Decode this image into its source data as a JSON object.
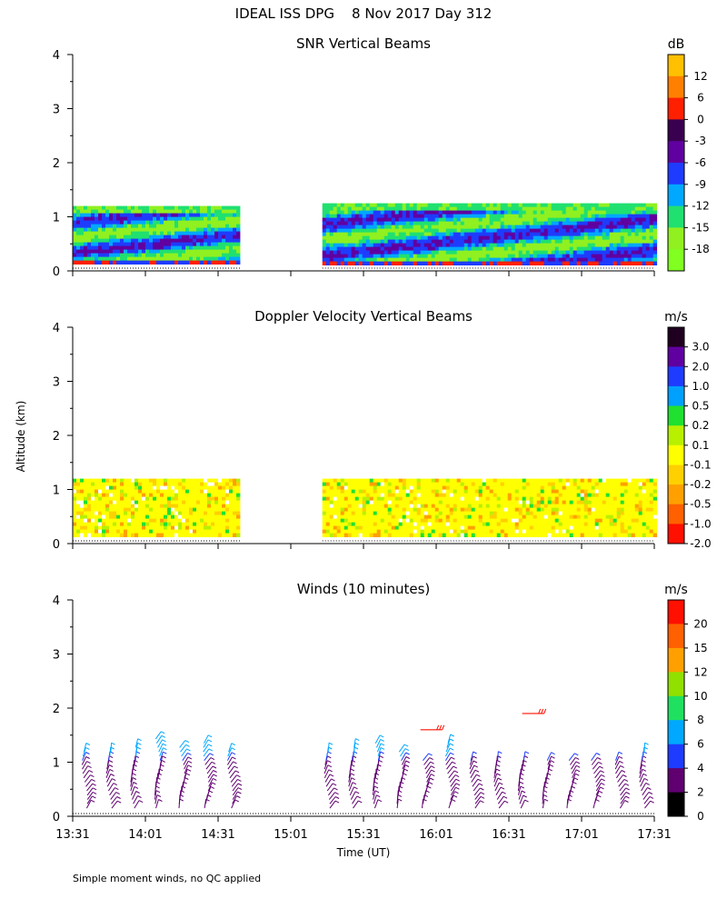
{
  "figure": {
    "title": "IDEAL ISS DPG    8 Nov 2017 Day 312",
    "ylabel": "Altitude (km)",
    "xlabel": "Time (UT)",
    "footnote": "Simple moment winds, no QC applied",
    "y_ticks": [
      0,
      1,
      2,
      3,
      4
    ],
    "x_ticks": [
      "13:31",
      "14:01",
      "14:31",
      "15:01",
      "15:31",
      "16:01",
      "16:31",
      "17:01",
      "17:31"
    ]
  },
  "chart_data": [
    {
      "type": "heatmap",
      "title": "SNR Vertical Beams",
      "ylabel": "Altitude (km)",
      "ylim": [
        0,
        4
      ],
      "x_range": [
        "13:31",
        "17:31"
      ],
      "units": "dB",
      "colorbar": {
        "labels": [
          "12",
          "6",
          "0",
          "-3",
          "-6",
          "-9",
          "-12",
          "-15",
          "-18"
        ],
        "colors": [
          "#ffc000",
          "#ff8000",
          "#ff2000",
          "#3a0050",
          "#6000a0",
          "#1e3cff",
          "#00a8ff",
          "#20e070",
          "#90f020",
          "#80ff20"
        ]
      },
      "data_segments": [
        {
          "start": "13:31",
          "end": "14:40",
          "alt_min": 0.15,
          "alt_max": 1.2
        },
        {
          "start": "15:14",
          "end": "17:31",
          "alt_min": 0.15,
          "alt_max": 1.25
        }
      ]
    },
    {
      "type": "heatmap",
      "title": "Doppler Velocity Vertical Beams",
      "ylabel": "Altitude (km)",
      "ylim": [
        0,
        4
      ],
      "x_range": [
        "13:31",
        "17:31"
      ],
      "units": "m/s",
      "colorbar": {
        "labels": [
          "3.0",
          "2.0",
          "1.0",
          "0.5",
          "0.2",
          "0.1",
          "-0.1",
          "-0.2",
          "-0.5",
          "-1.0",
          "-2.0"
        ],
        "colors": [
          "#200020",
          "#6000a0",
          "#1e3cff",
          "#00a0ff",
          "#20e030",
          "#b8f000",
          "#ffff00",
          "#ffd000",
          "#ffa000",
          "#ff6000",
          "#ff1000"
        ]
      },
      "data_segments": [
        {
          "start": "13:31",
          "end": "14:40",
          "alt_min": 0.15,
          "alt_max": 1.2
        },
        {
          "start": "15:14",
          "end": "17:31",
          "alt_min": 0.15,
          "alt_max": 1.2
        }
      ]
    },
    {
      "type": "scatter",
      "title": "Winds (10 minutes)",
      "ylabel": "Altitude (km)",
      "xlabel": "Time (UT)",
      "ylim": [
        0,
        4
      ],
      "x_range": [
        "13:31",
        "17:31"
      ],
      "units": "m/s",
      "colorbar": {
        "labels": [
          "20",
          "15",
          "12",
          "10",
          "8",
          "6",
          "4",
          "2",
          "0"
        ],
        "colors": [
          "#ff1000",
          "#ff6000",
          "#ffa000",
          "#90e000",
          "#20e060",
          "#00a8ff",
          "#1e3cff",
          "#600070",
          "#000000"
        ]
      },
      "profile_times": [
        "13:36",
        "13:46",
        "13:56",
        "14:06",
        "14:16",
        "14:26",
        "14:36",
        "15:16",
        "15:26",
        "15:36",
        "15:46",
        "15:56",
        "16:06",
        "16:16",
        "16:26",
        "16:36",
        "16:46",
        "16:56",
        "17:06",
        "17:16",
        "17:26"
      ],
      "profile_top_km": [
        1.2,
        1.2,
        1.3,
        1.45,
        1.3,
        1.35,
        1.25,
        1.25,
        1.3,
        1.4,
        1.2,
        1.1,
        1.35,
        1.1,
        1.1,
        1.1,
        1.1,
        1.1,
        1.1,
        1.1,
        1.25
      ],
      "upper_barbs": [
        {
          "time": "15:59",
          "alt_km": 1.6,
          "speed": 16
        },
        {
          "time": "16:41",
          "alt_km": 1.9,
          "speed": 20
        }
      ]
    }
  ]
}
